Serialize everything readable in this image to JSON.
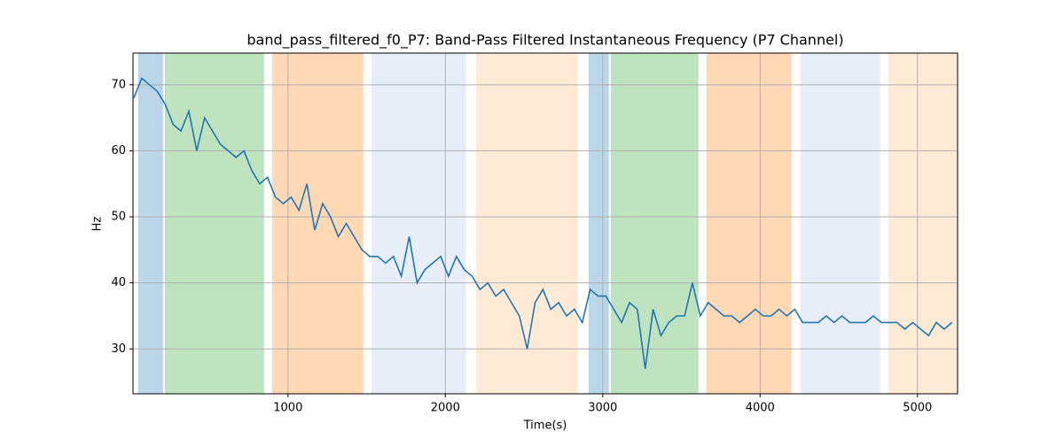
{
  "chart_data": {
    "type": "line",
    "title": "band_pass_filtered_f0_P7: Band-Pass Filtered Instantaneous Frequency (P7 Channel)",
    "xlabel": "Time(s)",
    "ylabel": "Hz",
    "xlim": [
      15,
      5255
    ],
    "ylim": [
      23.2,
      74.8
    ],
    "xticks": [
      1000,
      2000,
      3000,
      4000,
      5000
    ],
    "yticks": [
      30,
      40,
      50,
      60,
      70
    ],
    "grid": true,
    "spans": [
      {
        "start": 48,
        "end": 206,
        "color": "#1f77b4",
        "alpha": 0.3
      },
      {
        "start": 217,
        "end": 848,
        "color": "#2ca02c",
        "alpha": 0.3
      },
      {
        "start": 899,
        "end": 1479,
        "color": "#ff7f0e",
        "alpha": 0.3
      },
      {
        "start": 1530,
        "end": 2132,
        "color": "#aec7e8",
        "alpha": 0.3
      },
      {
        "start": 2194,
        "end": 2842,
        "color": "#ffbb78",
        "alpha": 0.3
      },
      {
        "start": 2910,
        "end": 3039,
        "color": "#1f77b4",
        "alpha": 0.3
      },
      {
        "start": 3051,
        "end": 3608,
        "color": "#2ca02c",
        "alpha": 0.3
      },
      {
        "start": 3659,
        "end": 4200,
        "color": "#ff7f0e",
        "alpha": 0.3
      },
      {
        "start": 4256,
        "end": 4763,
        "color": "#aec7e8",
        "alpha": 0.3
      },
      {
        "start": 4814,
        "end": 5253,
        "color": "#ffbb78",
        "alpha": 0.3
      }
    ],
    "x": [
      20,
      70,
      120,
      170,
      220,
      270,
      320,
      370,
      420,
      470,
      520,
      570,
      620,
      670,
      720,
      770,
      820,
      870,
      920,
      970,
      1020,
      1070,
      1120,
      1170,
      1220,
      1270,
      1320,
      1370,
      1420,
      1470,
      1520,
      1570,
      1620,
      1670,
      1720,
      1770,
      1820,
      1870,
      1920,
      1970,
      2020,
      2070,
      2120,
      2170,
      2220,
      2270,
      2320,
      2370,
      2420,
      2470,
      2520,
      2570,
      2620,
      2670,
      2720,
      2770,
      2820,
      2870,
      2920,
      2970,
      3020,
      3070,
      3120,
      3170,
      3220,
      3270,
      3320,
      3370,
      3420,
      3470,
      3520,
      3570,
      3620,
      3670,
      3720,
      3770,
      3820,
      3870,
      3920,
      3970,
      4020,
      4070,
      4120,
      4170,
      4220,
      4270,
      4320,
      4370,
      4420,
      4470,
      4520,
      4570,
      4620,
      4670,
      4720,
      4770,
      4820,
      4870,
      4920,
      4970,
      5020,
      5070,
      5120,
      5170,
      5220
    ],
    "series": [
      {
        "color": "#1f77b4",
        "values": [
          68,
          71,
          70,
          69,
          67,
          64,
          63,
          66,
          60,
          65,
          63,
          61,
          60,
          59,
          60,
          57,
          55,
          56,
          53,
          52,
          53,
          51,
          55,
          48,
          52,
          50,
          47,
          49,
          47,
          45,
          44,
          44,
          43,
          44,
          41,
          47,
          40,
          42,
          43,
          44,
          41,
          44,
          42,
          41,
          39,
          40,
          38,
          39,
          37,
          35,
          30,
          37,
          39,
          36,
          37,
          35,
          36,
          34,
          39,
          38,
          38,
          36,
          34,
          37,
          36,
          27,
          36,
          32,
          34,
          35,
          35,
          40,
          35,
          37,
          36,
          35,
          35,
          34,
          35,
          36,
          35,
          35,
          36,
          35,
          36,
          34,
          34,
          34,
          35,
          34,
          35,
          34,
          34,
          34,
          35,
          34,
          34,
          34,
          33,
          34,
          33,
          32,
          34,
          33,
          34
        ]
      }
    ]
  }
}
